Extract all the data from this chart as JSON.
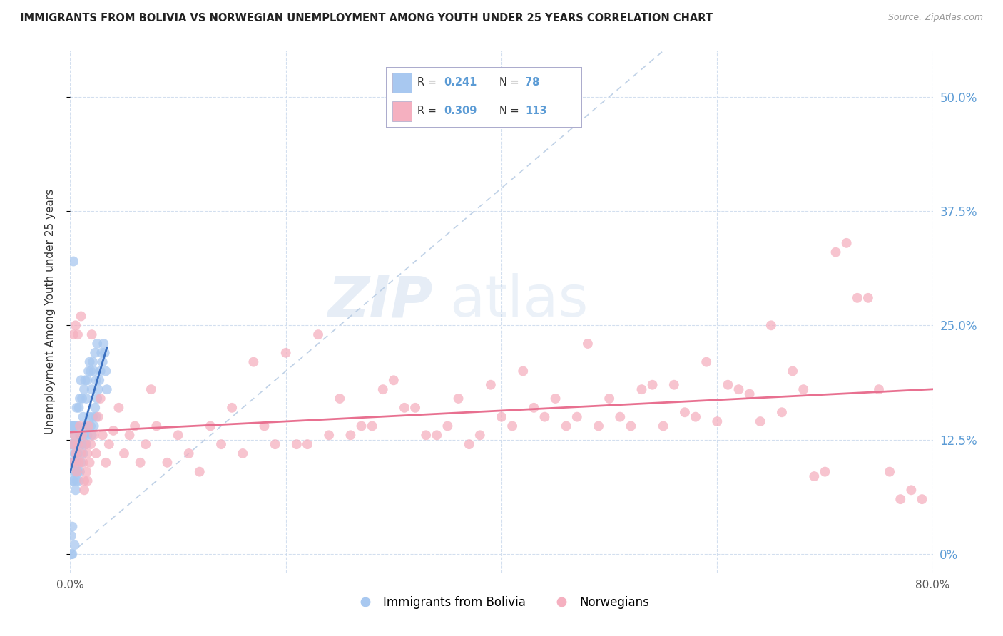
{
  "title": "IMMIGRANTS FROM BOLIVIA VS NORWEGIAN UNEMPLOYMENT AMONG YOUTH UNDER 25 YEARS CORRELATION CHART",
  "source": "Source: ZipAtlas.com",
  "ylabel": "Unemployment Among Youth under 25 years",
  "legend_label1": "Immigrants from Bolivia",
  "legend_label2": "Norwegians",
  "r1": "0.241",
  "n1": "78",
  "r2": "0.309",
  "n2": "113",
  "color_blue": "#A8C8F0",
  "color_pink": "#F5B0C0",
  "color_blue_line": "#3A6FC0",
  "color_pink_line": "#E87090",
  "color_diag_line": "#B8CCE4",
  "watermark_zip": "ZIP",
  "watermark_atlas": "atlas",
  "xlim": [
    0.0,
    0.8
  ],
  "ylim": [
    -0.02,
    0.55
  ],
  "yticks_right": [
    0.0,
    0.125,
    0.25,
    0.375,
    0.5
  ],
  "ytick_labels_right": [
    "0%",
    "12.5%",
    "25.0%",
    "37.5%",
    "50.0%"
  ],
  "xticks": [
    0.0,
    0.2,
    0.4,
    0.6,
    0.8
  ],
  "bolivia_x": [
    0.001,
    0.001,
    0.001,
    0.002,
    0.002,
    0.002,
    0.002,
    0.003,
    0.003,
    0.003,
    0.004,
    0.004,
    0.004,
    0.005,
    0.005,
    0.005,
    0.005,
    0.006,
    0.006,
    0.006,
    0.006,
    0.007,
    0.007,
    0.007,
    0.008,
    0.008,
    0.008,
    0.009,
    0.009,
    0.009,
    0.01,
    0.01,
    0.01,
    0.011,
    0.011,
    0.012,
    0.012,
    0.013,
    0.013,
    0.014,
    0.014,
    0.015,
    0.015,
    0.016,
    0.016,
    0.017,
    0.017,
    0.018,
    0.018,
    0.019,
    0.019,
    0.02,
    0.02,
    0.021,
    0.021,
    0.022,
    0.022,
    0.023,
    0.023,
    0.024,
    0.024,
    0.025,
    0.025,
    0.026,
    0.027,
    0.028,
    0.029,
    0.03,
    0.031,
    0.032,
    0.033,
    0.034,
    0.001,
    0.001,
    0.002,
    0.002,
    0.003,
    0.004
  ],
  "bolivia_y": [
    0.1,
    0.12,
    0.14,
    0.08,
    0.1,
    0.12,
    0.14,
    0.08,
    0.1,
    0.14,
    0.09,
    0.11,
    0.13,
    0.07,
    0.09,
    0.11,
    0.14,
    0.08,
    0.1,
    0.12,
    0.16,
    0.09,
    0.11,
    0.14,
    0.08,
    0.12,
    0.16,
    0.09,
    0.13,
    0.17,
    0.1,
    0.13,
    0.19,
    0.12,
    0.17,
    0.11,
    0.15,
    0.13,
    0.18,
    0.14,
    0.19,
    0.12,
    0.17,
    0.13,
    0.19,
    0.14,
    0.2,
    0.15,
    0.21,
    0.14,
    0.2,
    0.13,
    0.18,
    0.15,
    0.21,
    0.14,
    0.2,
    0.16,
    0.22,
    0.15,
    0.19,
    0.17,
    0.23,
    0.18,
    0.19,
    0.2,
    0.22,
    0.21,
    0.23,
    0.22,
    0.2,
    0.18,
    0.02,
    0.0,
    0.03,
    0.0,
    0.32,
    0.01
  ],
  "norway_x": [
    0.002,
    0.003,
    0.004,
    0.005,
    0.006,
    0.007,
    0.008,
    0.009,
    0.01,
    0.011,
    0.012,
    0.013,
    0.014,
    0.015,
    0.016,
    0.017,
    0.018,
    0.019,
    0.02,
    0.022,
    0.024,
    0.026,
    0.028,
    0.03,
    0.033,
    0.036,
    0.04,
    0.045,
    0.05,
    0.055,
    0.06,
    0.065,
    0.07,
    0.075,
    0.08,
    0.09,
    0.1,
    0.11,
    0.12,
    0.13,
    0.14,
    0.15,
    0.16,
    0.17,
    0.18,
    0.19,
    0.2,
    0.21,
    0.22,
    0.23,
    0.24,
    0.25,
    0.26,
    0.27,
    0.28,
    0.29,
    0.3,
    0.31,
    0.32,
    0.33,
    0.34,
    0.35,
    0.36,
    0.37,
    0.38,
    0.39,
    0.4,
    0.41,
    0.42,
    0.43,
    0.44,
    0.45,
    0.46,
    0.47,
    0.48,
    0.49,
    0.5,
    0.51,
    0.52,
    0.53,
    0.54,
    0.55,
    0.56,
    0.57,
    0.58,
    0.59,
    0.6,
    0.61,
    0.62,
    0.63,
    0.64,
    0.65,
    0.66,
    0.67,
    0.68,
    0.69,
    0.7,
    0.71,
    0.72,
    0.73,
    0.74,
    0.75,
    0.76,
    0.77,
    0.78,
    0.79,
    0.003,
    0.005,
    0.007,
    0.01,
    0.013,
    0.016
  ],
  "norway_y": [
    0.12,
    0.1,
    0.13,
    0.11,
    0.09,
    0.12,
    0.1,
    0.14,
    0.11,
    0.13,
    0.1,
    0.08,
    0.12,
    0.09,
    0.11,
    0.14,
    0.1,
    0.12,
    0.24,
    0.13,
    0.11,
    0.15,
    0.17,
    0.13,
    0.1,
    0.12,
    0.135,
    0.16,
    0.11,
    0.13,
    0.14,
    0.1,
    0.12,
    0.18,
    0.14,
    0.1,
    0.13,
    0.11,
    0.09,
    0.14,
    0.12,
    0.16,
    0.11,
    0.21,
    0.14,
    0.12,
    0.22,
    0.12,
    0.12,
    0.24,
    0.13,
    0.17,
    0.13,
    0.14,
    0.14,
    0.18,
    0.19,
    0.16,
    0.16,
    0.13,
    0.13,
    0.14,
    0.17,
    0.12,
    0.13,
    0.185,
    0.15,
    0.14,
    0.2,
    0.16,
    0.15,
    0.17,
    0.14,
    0.15,
    0.23,
    0.14,
    0.17,
    0.15,
    0.14,
    0.18,
    0.185,
    0.14,
    0.185,
    0.155,
    0.15,
    0.21,
    0.145,
    0.185,
    0.18,
    0.175,
    0.145,
    0.25,
    0.155,
    0.2,
    0.18,
    0.085,
    0.09,
    0.33,
    0.34,
    0.28,
    0.28,
    0.18,
    0.09,
    0.06,
    0.07,
    0.06,
    0.24,
    0.25,
    0.24,
    0.26,
    0.07,
    0.08
  ]
}
